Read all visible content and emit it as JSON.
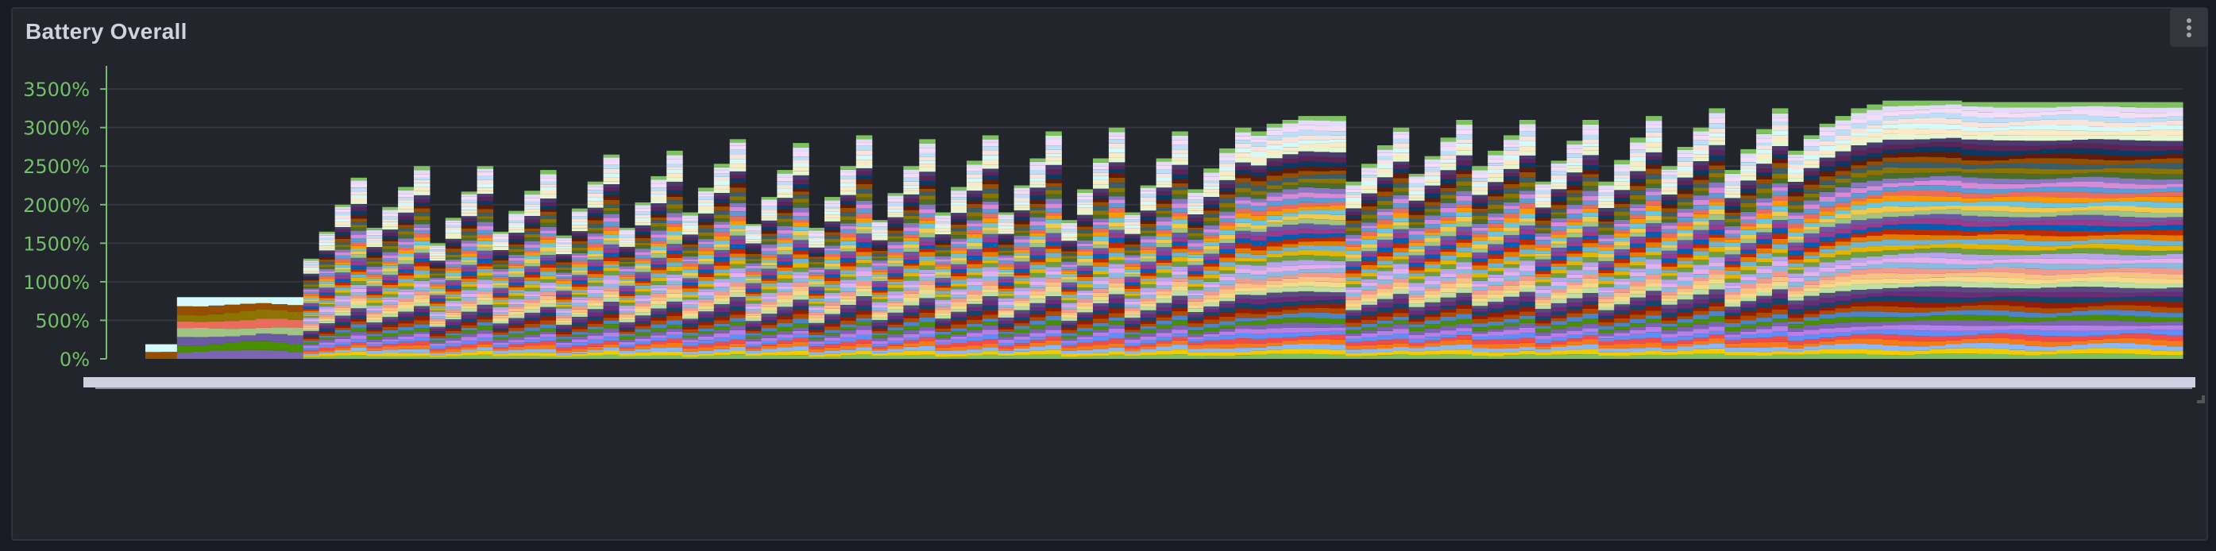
{
  "panel": {
    "title": "Battery Overall",
    "menu_icon": "kebab-vertical-icon"
  },
  "chart_data": {
    "type": "area",
    "stacked": true,
    "step": true,
    "title": "Battery Overall",
    "xlabel": "",
    "ylabel": "",
    "ylim": [
      0,
      3800
    ],
    "yticks": [
      0,
      500,
      1000,
      1500,
      2000,
      2500,
      3000,
      3500
    ],
    "ytick_labels": [
      "0%",
      "500%",
      "1000%",
      "1500%",
      "2000%",
      "2500%",
      "3000%",
      "3500%"
    ],
    "y_axis_color": "#73bf69",
    "grid": true,
    "legend": "none",
    "x_tick_labels_legible": false,
    "totals": [
      190,
      190,
      800,
      800,
      800,
      800,
      800,
      800,
      800,
      800,
      1300,
      1650,
      2000,
      2350,
      1700,
      1970,
      2230,
      2500,
      1500,
      1830,
      2170,
      2500,
      1650,
      1920,
      2180,
      2450,
      1600,
      1950,
      2300,
      2650,
      1700,
      2030,
      2370,
      2700,
      1900,
      2220,
      2530,
      2850,
      1750,
      2100,
      2450,
      2800,
      1700,
      2100,
      2500,
      2900,
      1800,
      2150,
      2500,
      2850,
      1900,
      2230,
      2570,
      2900,
      1900,
      2250,
      2600,
      2950,
      1800,
      2200,
      2600,
      3000,
      1900,
      2250,
      2600,
      2950,
      2200,
      2470,
      2730,
      3000,
      2950,
      3050,
      3100,
      3150,
      3150,
      3150,
      2300,
      2530,
      2770,
      3000,
      2400,
      2630,
      2870,
      3100,
      2500,
      2700,
      2900,
      3100,
      2300,
      2570,
      2830,
      3100,
      2300,
      2580,
      2870,
      3150,
      2500,
      2750,
      3000,
      3250,
      2450,
      2720,
      2980,
      3250,
      2700,
      2900,
      3050,
      3150,
      3250,
      3300,
      3350,
      3350,
      3350,
      3350,
      3350,
      3330,
      3330,
      3330,
      3330,
      3330,
      3330,
      3330,
      3330,
      3330,
      3330,
      3330,
      3330,
      3330,
      3330
    ],
    "series_colors_bottom_to_top": [
      "#7ec25d",
      "#f4cb00",
      "#89b7f9",
      "#f77b14",
      "#f04c4c",
      "#5e8ef7",
      "#b87fe6",
      "#7b64b2",
      "#4a8f00",
      "#4d83c9",
      "#b04c00",
      "#941d06",
      "#15456b",
      "#6a2b78",
      "#5b4a82",
      "#bde0a4",
      "#f4da8b",
      "#f9c184",
      "#f29a8d",
      "#89bae2",
      "#e3b0ec",
      "#b6a5ec",
      "#6d9f41",
      "#e5b400",
      "#6db4d3",
      "#e37d00",
      "#c12a00",
      "#005eb4",
      "#993a8c",
      "#6b5aa3",
      "#a0c484",
      "#f2c94a",
      "#69c5e0",
      "#f89a00",
      "#ea6c5c",
      "#5b9bd6",
      "#d88ad6",
      "#8878c2",
      "#4a6d2c",
      "#8d7400",
      "#3a5d68",
      "#964f00",
      "#5e1c0c",
      "#0a3a62",
      "#5a2556",
      "#4b3a6e",
      "#e3f7d0",
      "#fce9c6",
      "#d5fafb",
      "#fbe3da",
      "#bcdff7",
      "#f5dcf7",
      "#e2dcf8",
      "#7ec25d"
    ]
  }
}
